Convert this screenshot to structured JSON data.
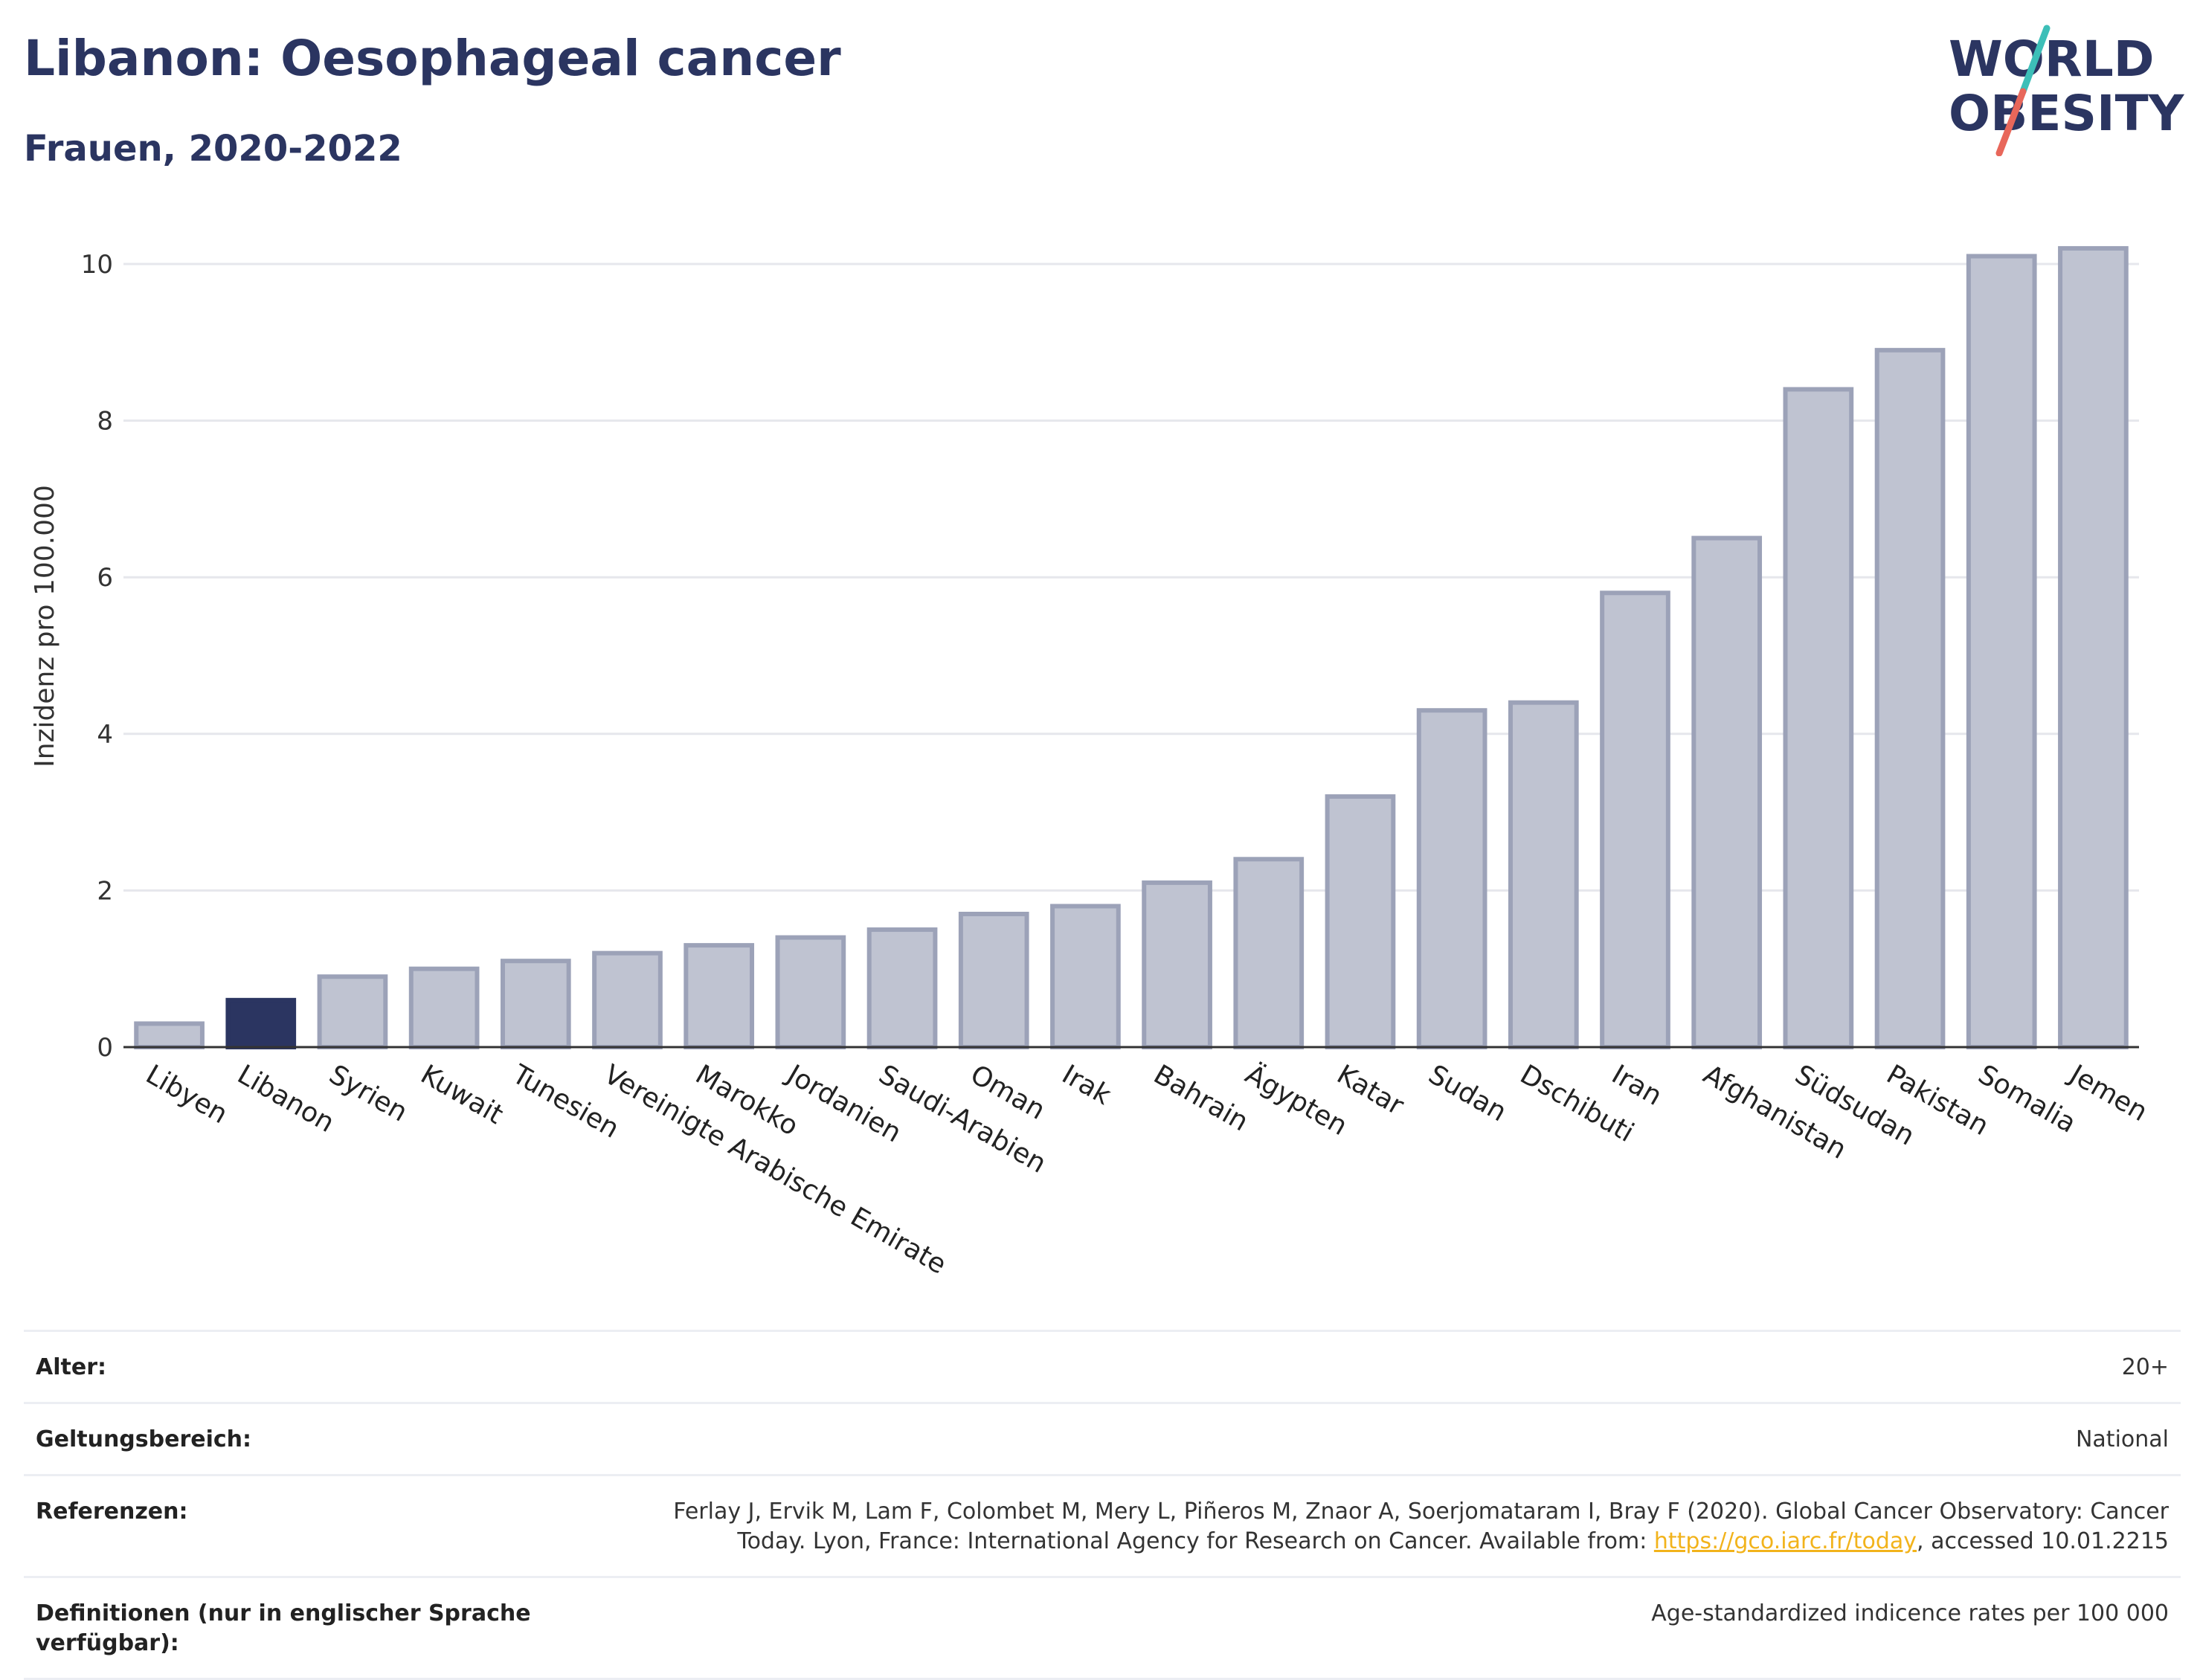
{
  "header": {
    "title": "Libanon: Oesophageal cancer",
    "subtitle": "Frauen, 2020-2022"
  },
  "logo": {
    "line1": "WORLD",
    "line2": "OBESITY"
  },
  "colors": {
    "highlight": "#2b3561",
    "bar_fill": "#bfc3d1",
    "bar_stroke": "#9ca2b8",
    "grid": "#e6e7ec",
    "logo_teal": "#3dbfb8",
    "logo_red": "#e8675a",
    "link": "#f2b31b"
  },
  "chart_data": {
    "type": "bar",
    "title": "Libanon: Oesophageal cancer",
    "subtitle": "Frauen, 2020-2022",
    "xlabel": "",
    "ylabel": "Inzidenz pro 100.000",
    "ylim": [
      0,
      10.5
    ],
    "yticks": [
      0,
      2,
      4,
      6,
      8,
      10
    ],
    "grid": true,
    "highlight": "Libanon",
    "categories": [
      "Libyen",
      "Libanon",
      "Syrien",
      "Kuwait",
      "Tunesien",
      "Vereinigte Arabische Emirate",
      "Marokko",
      "Jordanien",
      "Saudi-Arabien",
      "Oman",
      "Irak",
      "Bahrain",
      "Ägypten",
      "Katar",
      "Sudan",
      "Dschibuti",
      "Iran",
      "Afghanistan",
      "Südsudan",
      "Pakistan",
      "Somalia",
      "Jemen"
    ],
    "values": [
      0.3,
      0.6,
      0.9,
      1.0,
      1.1,
      1.2,
      1.3,
      1.4,
      1.5,
      1.7,
      1.8,
      2.1,
      2.4,
      3.2,
      4.3,
      4.4,
      5.8,
      6.5,
      8.4,
      8.9,
      10.1,
      10.2
    ]
  },
  "info": {
    "age_label": "Alter:",
    "age_value": "20+",
    "scope_label": "Geltungsbereich:",
    "scope_value": "National",
    "refs_label": "Referenzen:",
    "refs_text_1": "Ferlay J, Ervik M, Lam F, Colombet M, Mery L, Piñeros M, Znaor A, Soerjomataram I, Bray F (2020). Global Cancer Observatory: Cancer Today. Lyon, France: International Agency for Research on Cancer. Available from: ",
    "refs_link": "https://gco.iarc.fr/today",
    "refs_text_2": ", accessed 10.01.2215",
    "defs_label": "Definitionen (nur in englischer Sprache verfügbar):",
    "defs_value": "Age-standardized indicence rates per 100 000"
  }
}
